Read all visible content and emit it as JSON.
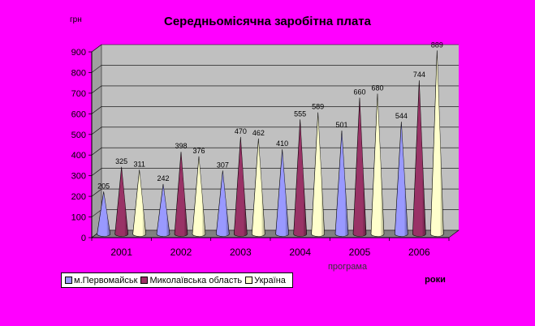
{
  "chart_data": {
    "type": "bar",
    "title": "Середньомісячна заробітна плата",
    "ylabel": "грн",
    "xlabel": "роки",
    "annotation": "програма",
    "categories": [
      "2001",
      "2002",
      "2003",
      "2004",
      "2005",
      "2006"
    ],
    "ylim": [
      0,
      900
    ],
    "yticks": [
      0,
      100,
      200,
      300,
      400,
      500,
      600,
      700,
      800,
      900
    ],
    "grid": true,
    "legend_position": "bottom-left",
    "series": [
      {
        "name": "м.Первомайськ",
        "color": "#9999ff",
        "values": [
          205,
          242,
          307,
          410,
          501,
          544
        ]
      },
      {
        "name": "Миколаївська область",
        "color": "#993366",
        "values": [
          325,
          398,
          470,
          555,
          660,
          744
        ]
      },
      {
        "name": "Україна",
        "color": "#ffffcc",
        "values": [
          311,
          376,
          462,
          589,
          680,
          889
        ]
      }
    ]
  }
}
